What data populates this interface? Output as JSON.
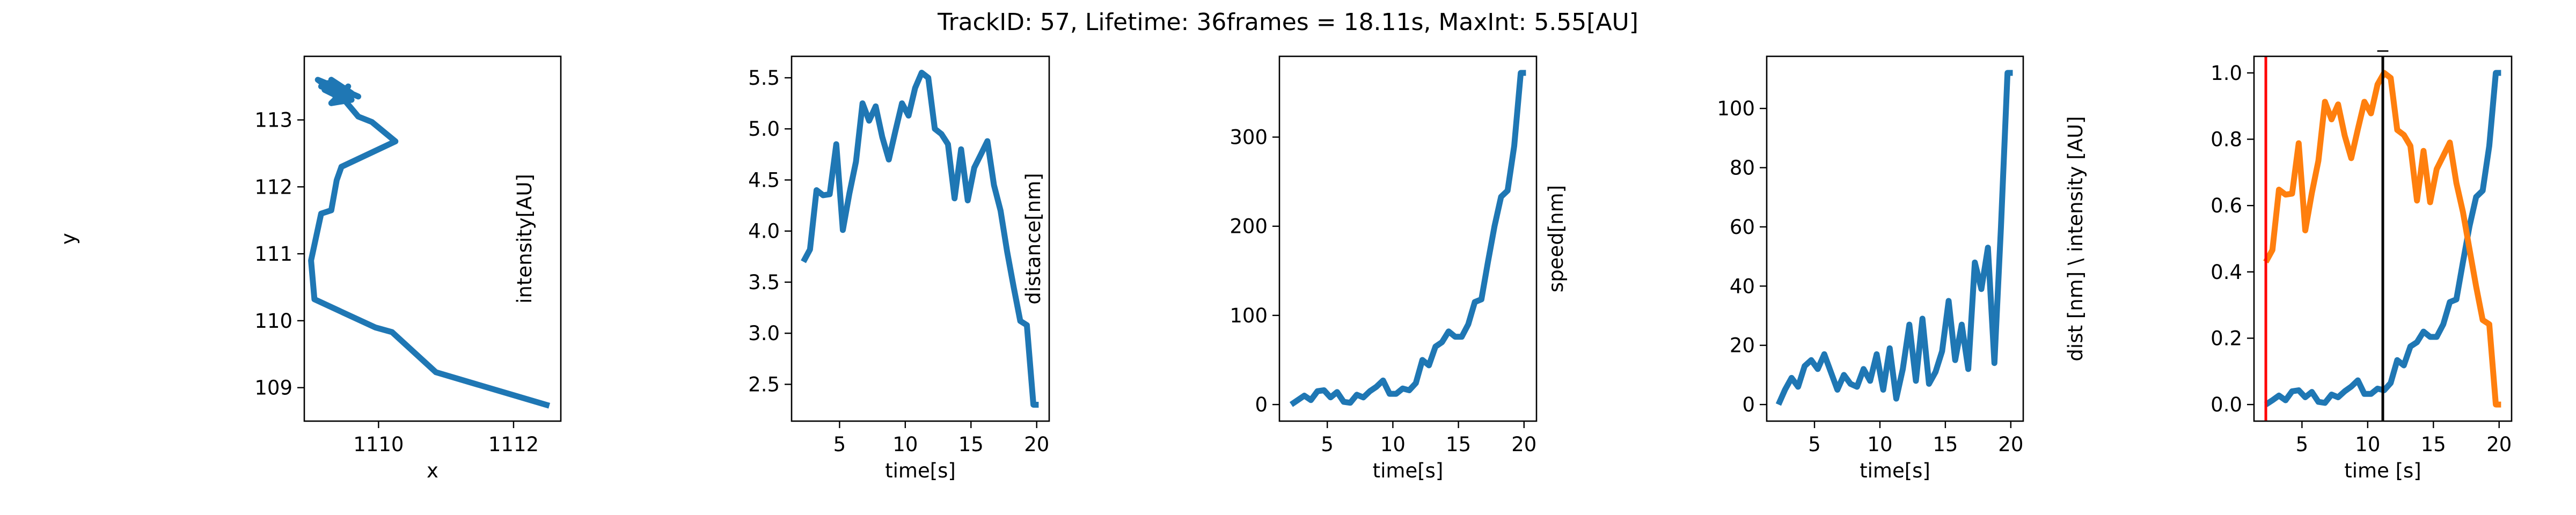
{
  "title": "TrackID: 57, Lifetime: 36frames = 18.11s, MaxInt: 5.55[AU]",
  "colors": {
    "blue": "#1f77b4",
    "orange": "#ff7f0e",
    "red": "#ff0000",
    "black": "#000000"
  },
  "chart_data": [
    {
      "type": "line",
      "title": "",
      "xlabel": "x",
      "ylabel": "y",
      "xlim": [
        1108.9,
        1112.7
      ],
      "ylim": [
        108.5,
        113.95
      ],
      "xticks": [
        1110,
        1112
      ],
      "xtick_labels": [
        "1110",
        "1112"
      ],
      "yticks": [
        109,
        110,
        111,
        112,
        113
      ],
      "ytick_labels": [
        "109",
        "110",
        "111",
        "112",
        "113"
      ],
      "grid": false,
      "series": [
        {
          "color": "#1f77b4",
          "x": [
            1112.53,
            1110.85,
            1110.2,
            1109.95,
            1109.05,
            1109.0,
            1109.15,
            1109.3,
            1109.38,
            1109.45,
            1110.25,
            1109.9,
            1109.7,
            1109.45,
            1109.55,
            1109.3,
            1109.6,
            1109.2,
            1109.5,
            1109.1,
            1109.7,
            1109.25,
            1109.4,
            1109.3,
            1109.6,
            1109.15,
            1109.55,
            1109.35
          ],
          "y": [
            108.73,
            109.23,
            109.83,
            109.9,
            110.32,
            110.9,
            111.6,
            111.65,
            112.1,
            112.3,
            112.68,
            112.97,
            113.05,
            113.35,
            113.5,
            113.25,
            113.3,
            113.45,
            113.3,
            113.6,
            113.35,
            113.55,
            113.28,
            113.6,
            113.4,
            113.5,
            113.35,
            113.45
          ]
        }
      ]
    },
    {
      "type": "line",
      "title": "",
      "xlabel": "time[s]",
      "ylabel": "intensity[AU]",
      "xlim": [
        1.35,
        20.95
      ],
      "ylim": [
        2.14,
        5.71
      ],
      "xticks": [
        5,
        10,
        15,
        20
      ],
      "xtick_labels": [
        "5",
        "10",
        "15",
        "20"
      ],
      "yticks": [
        2.5,
        3.0,
        3.5,
        4.0,
        4.5,
        5.0,
        5.5
      ],
      "ytick_labels": [
        "2.5",
        "3.0",
        "3.5",
        "4.0",
        "4.5",
        "5.0",
        "5.5"
      ],
      "grid": false,
      "series": [
        {
          "color": "#1f77b4",
          "x": [
            2.25,
            2.75,
            3.25,
            3.75,
            4.25,
            4.75,
            5.25,
            5.75,
            6.25,
            6.75,
            7.25,
            7.75,
            8.25,
            8.75,
            9.25,
            9.75,
            10.25,
            10.75,
            11.25,
            11.75,
            12.25,
            12.75,
            13.25,
            13.75,
            14.25,
            14.75,
            15.25,
            15.75,
            16.25,
            16.75,
            17.25,
            17.75,
            18.25,
            18.75,
            19.25,
            19.75,
            20.15
          ],
          "y": [
            3.7,
            3.82,
            4.4,
            4.35,
            4.36,
            4.85,
            4.01,
            4.37,
            4.68,
            5.25,
            5.08,
            5.22,
            4.92,
            4.7,
            4.98,
            5.25,
            5.13,
            5.4,
            5.55,
            5.5,
            5.0,
            4.95,
            4.85,
            4.32,
            4.8,
            4.3,
            4.62,
            4.75,
            4.88,
            4.45,
            4.2,
            3.8,
            3.45,
            3.12,
            3.08,
            2.3,
            2.3
          ]
        }
      ]
    },
    {
      "type": "line",
      "title": "",
      "xlabel": "time[s]",
      "ylabel": "distance[nm]",
      "xlim": [
        1.35,
        20.95
      ],
      "ylim": [
        -18.6,
        390.6
      ],
      "xticks": [
        5,
        10,
        15,
        20
      ],
      "xtick_labels": [
        "5",
        "10",
        "15",
        "20"
      ],
      "yticks": [
        0,
        100,
        200,
        300
      ],
      "ytick_labels": [
        "0",
        "100",
        "200",
        "300"
      ],
      "grid": false,
      "series": [
        {
          "color": "#1f77b4",
          "x": [
            2.25,
            2.75,
            3.25,
            3.75,
            4.25,
            4.75,
            5.25,
            5.75,
            6.25,
            6.75,
            7.25,
            7.75,
            8.25,
            8.75,
            9.25,
            9.75,
            10.25,
            10.75,
            11.25,
            11.75,
            12.25,
            12.75,
            13.25,
            13.75,
            14.25,
            14.75,
            15.25,
            15.75,
            16.25,
            16.75,
            17.25,
            17.75,
            18.25,
            18.75,
            19.25,
            19.75,
            20.15
          ],
          "y": [
            0,
            5,
            10,
            5,
            15,
            16,
            8,
            14,
            3,
            2,
            11,
            8,
            15,
            20,
            27,
            12,
            12,
            18,
            16,
            24,
            50,
            44,
            65,
            70,
            82,
            76,
            76,
            90,
            115,
            118,
            160,
            200,
            233,
            240,
            290,
            372,
            372
          ]
        }
      ]
    },
    {
      "type": "line",
      "title": "",
      "xlabel": "time[s]",
      "ylabel": "speed[nm]",
      "xlim": [
        1.35,
        20.95
      ],
      "ylim": [
        -5.6,
        117.6
      ],
      "xticks": [
        5,
        10,
        15,
        20
      ],
      "xtick_labels": [
        "5",
        "10",
        "15",
        "20"
      ],
      "yticks": [
        0,
        20,
        40,
        60,
        80,
        100
      ],
      "ytick_labels": [
        "0",
        "20",
        "40",
        "60",
        "80",
        "100"
      ],
      "grid": false,
      "series": [
        {
          "color": "#1f77b4",
          "x": [
            2.25,
            2.75,
            3.25,
            3.75,
            4.25,
            4.75,
            5.25,
            5.75,
            6.25,
            6.75,
            7.25,
            7.75,
            8.25,
            8.75,
            9.25,
            9.75,
            10.25,
            10.75,
            11.25,
            11.75,
            12.25,
            12.75,
            13.25,
            13.75,
            14.25,
            14.75,
            15.25,
            15.75,
            16.25,
            16.75,
            17.25,
            17.75,
            18.25,
            18.75,
            19.25,
            19.75,
            20.15
          ],
          "y": [
            0,
            5,
            9,
            6,
            13,
            15,
            12,
            17,
            11,
            5,
            10,
            7,
            6,
            12,
            8,
            17,
            5,
            19,
            2,
            12,
            27,
            8,
            29,
            7,
            11,
            18,
            35,
            15,
            27,
            12,
            48,
            39,
            53,
            14,
            60,
            112,
            112
          ]
        }
      ]
    },
    {
      "type": "line",
      "title": "_",
      "xlabel": "time [s]",
      "ylabel": "dist [nm] \\ intensity [AU]",
      "xlim": [
        1.35,
        20.95
      ],
      "ylim": [
        -0.05,
        1.05
      ],
      "xticks": [
        5,
        10,
        15,
        20
      ],
      "xtick_labels": [
        "5",
        "10",
        "15",
        "20"
      ],
      "yticks": [
        0.0,
        0.2,
        0.4,
        0.6,
        0.8,
        1.0
      ],
      "ytick_labels": [
        "0.0",
        "0.2",
        "0.4",
        "0.6",
        "0.8",
        "1.0"
      ],
      "grid": false,
      "vlines": [
        {
          "x": 2.25,
          "color": "#ff0000"
        },
        {
          "x": 11.15,
          "color": "#000000"
        }
      ],
      "series": [
        {
          "color": "#1f77b4",
          "x": [
            2.25,
            2.75,
            3.25,
            3.75,
            4.25,
            4.75,
            5.25,
            5.75,
            6.25,
            6.75,
            7.25,
            7.75,
            8.25,
            8.75,
            9.25,
            9.75,
            10.25,
            10.75,
            11.25,
            11.75,
            12.25,
            12.75,
            13.25,
            13.75,
            14.25,
            14.75,
            15.25,
            15.75,
            16.25,
            16.75,
            17.25,
            17.75,
            18.25,
            18.75,
            19.25,
            19.75,
            20.15
          ],
          "y": [
            0,
            0.013,
            0.027,
            0.013,
            0.04,
            0.043,
            0.022,
            0.038,
            0.008,
            0.005,
            0.03,
            0.022,
            0.04,
            0.054,
            0.073,
            0.032,
            0.032,
            0.048,
            0.043,
            0.065,
            0.134,
            0.118,
            0.175,
            0.188,
            0.22,
            0.204,
            0.204,
            0.242,
            0.309,
            0.317,
            0.43,
            0.538,
            0.626,
            0.645,
            0.78,
            1.0,
            1.0
          ]
        },
        {
          "color": "#ff7f0e",
          "x": [
            2.25,
            2.75,
            3.25,
            3.75,
            4.25,
            4.75,
            5.25,
            5.75,
            6.25,
            6.75,
            7.25,
            7.75,
            8.25,
            8.75,
            9.25,
            9.75,
            10.25,
            10.75,
            11.25,
            11.75,
            12.25,
            12.75,
            13.25,
            13.75,
            14.25,
            14.75,
            15.25,
            15.75,
            16.25,
            16.75,
            17.25,
            17.75,
            18.25,
            18.75,
            19.25,
            19.75,
            20.15
          ],
          "y": [
            0.43,
            0.466,
            0.648,
            0.633,
            0.636,
            0.788,
            0.525,
            0.638,
            0.735,
            0.913,
            0.86,
            0.905,
            0.811,
            0.743,
            0.83,
            0.913,
            0.878,
            0.965,
            1.0,
            0.985,
            0.828,
            0.813,
            0.78,
            0.615,
            0.765,
            0.61,
            0.71,
            0.75,
            0.79,
            0.668,
            0.58,
            0.468,
            0.356,
            0.255,
            0.242,
            0.0,
            0.0
          ]
        }
      ]
    }
  ]
}
